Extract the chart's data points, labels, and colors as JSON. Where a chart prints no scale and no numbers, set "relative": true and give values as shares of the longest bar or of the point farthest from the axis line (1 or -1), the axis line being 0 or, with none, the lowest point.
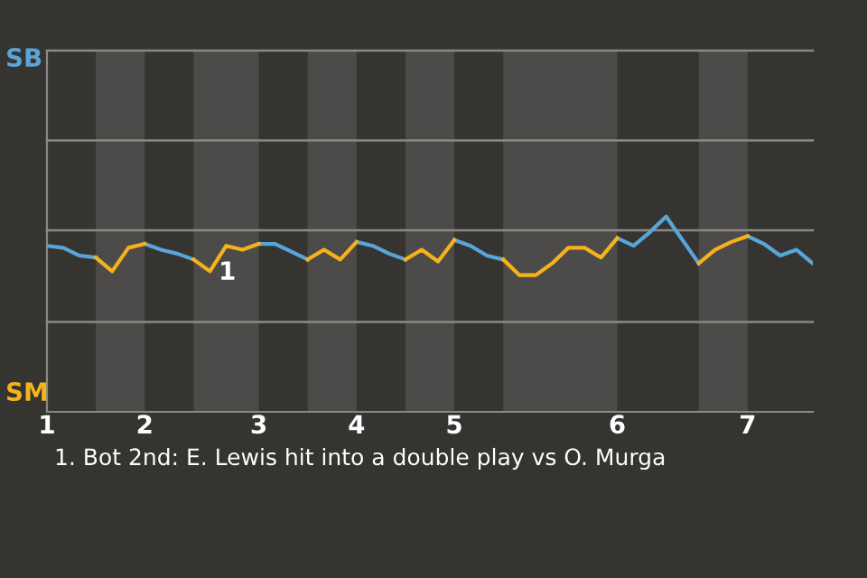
{
  "chart_data": {
    "type": "line",
    "relative": true,
    "categories": [
      "1",
      null,
      null,
      null,
      null,
      null,
      "2",
      null,
      null,
      null,
      null,
      null,
      null,
      "3",
      null,
      null,
      null,
      null,
      null,
      "4",
      null,
      null,
      null,
      null,
      null,
      "5",
      null,
      null,
      null,
      null,
      null,
      null,
      null,
      null,
      null,
      "6",
      null,
      null,
      null,
      null,
      null,
      null,
      null,
      "7",
      null,
      null,
      null,
      null
    ],
    "series": [
      {
        "color": "#5aa5d8",
        "values": [
          0.85,
          0.84,
          0.8,
          0.79,
          null,
          null,
          0.86,
          0.83,
          0.81,
          0.78,
          null,
          null,
          null,
          0.86,
          0.86,
          0.82,
          0.78,
          null,
          null,
          0.87,
          0.85,
          0.81,
          0.78,
          null,
          null,
          0.88,
          0.85,
          0.8,
          0.78,
          null,
          null,
          null,
          null,
          null,
          null,
          0.89,
          0.85,
          0.92,
          1,
          0.88,
          0.76,
          null,
          null,
          0.9,
          0.86,
          0.8,
          0.83,
          0.76
        ]
      },
      {
        "color": "#f5b21b",
        "values": [
          null,
          null,
          null,
          0.79,
          0.72,
          0.84,
          0.86,
          null,
          null,
          0.78,
          0.72,
          0.85,
          0.83,
          0.86,
          null,
          null,
          0.78,
          0.83,
          0.78,
          0.87,
          null,
          null,
          0.78,
          0.83,
          0.77,
          0.88,
          null,
          null,
          0.78,
          0.7,
          0.7,
          0.76,
          0.84,
          0.84,
          0.79,
          0.89,
          null,
          null,
          null,
          null,
          0.76,
          0.83,
          0.87,
          0.9,
          null,
          null,
          null,
          null
        ]
      }
    ],
    "ref_lines": [
      {
        "axis": "y",
        "value": 0.46,
        "color": "#8a8986"
      },
      {
        "axis": "y",
        "value": 0.93,
        "color": "#8a8986"
      },
      {
        "axis": "y",
        "value": 1.39,
        "color": "#8a8986"
      },
      {
        "axis": "y",
        "value": 1.85,
        "color": "#8a8986"
      }
    ],
    "annotations": [
      "SB",
      "SM",
      "1",
      "1. Bot 2nd: E. Lewis hit into a double play vs O. Murga"
    ]
  }
}
